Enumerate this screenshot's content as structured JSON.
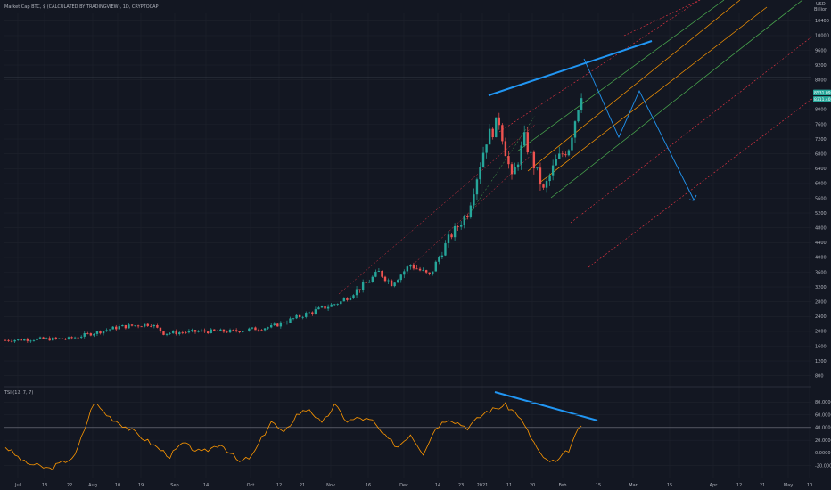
{
  "header": {
    "title": "Market Cap BTC, $ (CALCULATED BY TRADINGVIEW), 1D, CRYPTOCAP",
    "currency": "USD",
    "billion": "Billion"
  },
  "colors": {
    "background": "#131722",
    "grid": "#1e222d",
    "up": "#26a69a",
    "down": "#ef5350",
    "annotation_blue": "#2196f3",
    "tsi_line": "#ff9800",
    "channel_orange": "#ff9800",
    "channel_green": "#4caf50",
    "channel_red": "#f23645",
    "text": "#b2b5be"
  },
  "chart_data": [
    {
      "type": "candlestick",
      "title": "Market Cap BTC, $ (CALCULATED BY TRADINGVIEW), 1D, CRYPTOCAP",
      "ylim": [
        600,
        10600
      ],
      "y_ticks": [
        {
          "v": 10400,
          "label": "10400"
        },
        {
          "v": 10000,
          "label": "10000"
        },
        {
          "v": 9600,
          "label": "9600"
        },
        {
          "v": 9200,
          "label": "9200"
        },
        {
          "v": 8800,
          "label": "8800"
        },
        {
          "v": 8000,
          "label": "8000"
        },
        {
          "v": 7600,
          "label": "7600"
        },
        {
          "v": 7200,
          "label": "7200"
        },
        {
          "v": 6800,
          "label": "6800"
        },
        {
          "v": 6400,
          "label": "6400"
        },
        {
          "v": 6000,
          "label": "6000"
        },
        {
          "v": 5600,
          "label": "5600"
        },
        {
          "v": 5200,
          "label": "5200"
        },
        {
          "v": 4800,
          "label": "4800"
        },
        {
          "v": 4400,
          "label": "4400"
        },
        {
          "v": 4000,
          "label": "4000"
        },
        {
          "v": 3600,
          "label": "3600"
        },
        {
          "v": 3200,
          "label": "3200"
        },
        {
          "v": 2800,
          "label": "2800"
        },
        {
          "v": 2400,
          "label": "2400"
        },
        {
          "v": 2000,
          "label": "2000"
        },
        {
          "v": 1600,
          "label": "1600"
        },
        {
          "v": 1200,
          "label": "1200"
        },
        {
          "v": 800,
          "label": "800"
        }
      ],
      "price_badges": [
        {
          "v": 8460,
          "label": "8531.09B",
          "color": "#26a69a"
        },
        {
          "v": 8280,
          "label": "8311.40",
          "color": "#26a69a"
        }
      ],
      "x_tick_labels": [
        "Jul",
        "13",
        "22",
        "Aug",
        "10",
        "19",
        "Sep",
        "14",
        "Oct",
        "12",
        "21",
        "Nov",
        "16",
        "Dec",
        "14",
        "23",
        "2021",
        "11",
        "20",
        "Feb",
        "15",
        "Mar",
        "15",
        "Apr",
        "12",
        "21",
        "May",
        "10"
      ],
      "anchors": [
        {
          "i": 0,
          "v": 1760
        },
        {
          "i": 10,
          "v": 1790
        },
        {
          "i": 20,
          "v": 1800
        },
        {
          "i": 30,
          "v": 2000
        },
        {
          "i": 36,
          "v": 2120
        },
        {
          "i": 46,
          "v": 2200
        },
        {
          "i": 50,
          "v": 1950
        },
        {
          "i": 62,
          "v": 2000
        },
        {
          "i": 72,
          "v": 2000
        },
        {
          "i": 84,
          "v": 2120
        },
        {
          "i": 96,
          "v": 2500
        },
        {
          "i": 106,
          "v": 2800
        },
        {
          "i": 114,
          "v": 3300
        },
        {
          "i": 118,
          "v": 3600
        },
        {
          "i": 122,
          "v": 3300
        },
        {
          "i": 128,
          "v": 3800
        },
        {
          "i": 134,
          "v": 3500
        },
        {
          "i": 140,
          "v": 4500
        },
        {
          "i": 146,
          "v": 5200
        },
        {
          "i": 152,
          "v": 7200
        },
        {
          "i": 156,
          "v": 7700
        },
        {
          "i": 160,
          "v": 6100
        },
        {
          "i": 164,
          "v": 7200
        },
        {
          "i": 170,
          "v": 5800
        },
        {
          "i": 174,
          "v": 6600
        },
        {
          "i": 178,
          "v": 7000
        },
        {
          "i": 182,
          "v": 8500
        }
      ]
    },
    {
      "type": "line",
      "title": "TSI (12, 7, 7)",
      "ylim": [
        -40,
        100
      ],
      "y_ticks": [
        {
          "v": 80,
          "label": "80.0000"
        },
        {
          "v": 60,
          "label": "60.0000"
        },
        {
          "v": 40,
          "label": "40.0000"
        },
        {
          "v": 20,
          "label": "20.0000"
        },
        {
          "v": 0,
          "label": "0.0000"
        },
        {
          "v": -20,
          "label": "-20.0000"
        }
      ],
      "reference_lines": [
        40,
        0
      ],
      "anchors": [
        {
          "i": 0,
          "v": 10
        },
        {
          "i": 6,
          "v": -15
        },
        {
          "i": 14,
          "v": -25
        },
        {
          "i": 22,
          "v": -5
        },
        {
          "i": 28,
          "v": 80
        },
        {
          "i": 32,
          "v": 60
        },
        {
          "i": 40,
          "v": 35
        },
        {
          "i": 46,
          "v": 15
        },
        {
          "i": 52,
          "v": -5
        },
        {
          "i": 56,
          "v": 15
        },
        {
          "i": 62,
          "v": 0
        },
        {
          "i": 68,
          "v": 15
        },
        {
          "i": 74,
          "v": -15
        },
        {
          "i": 78,
          "v": -5
        },
        {
          "i": 84,
          "v": 50
        },
        {
          "i": 88,
          "v": 30
        },
        {
          "i": 92,
          "v": 60
        },
        {
          "i": 96,
          "v": 70
        },
        {
          "i": 100,
          "v": 45
        },
        {
          "i": 104,
          "v": 75
        },
        {
          "i": 108,
          "v": 50
        },
        {
          "i": 112,
          "v": 55
        },
        {
          "i": 116,
          "v": 50
        },
        {
          "i": 120,
          "v": 25
        },
        {
          "i": 124,
          "v": 10
        },
        {
          "i": 128,
          "v": 30
        },
        {
          "i": 132,
          "v": 0
        },
        {
          "i": 136,
          "v": 40
        },
        {
          "i": 140,
          "v": 55
        },
        {
          "i": 146,
          "v": 40
        },
        {
          "i": 152,
          "v": 65
        },
        {
          "i": 158,
          "v": 75
        },
        {
          "i": 162,
          "v": 60
        },
        {
          "i": 166,
          "v": 25
        },
        {
          "i": 170,
          "v": -10
        },
        {
          "i": 174,
          "v": -15
        },
        {
          "i": 178,
          "v": 5
        },
        {
          "i": 182,
          "v": 45
        }
      ]
    }
  ]
}
